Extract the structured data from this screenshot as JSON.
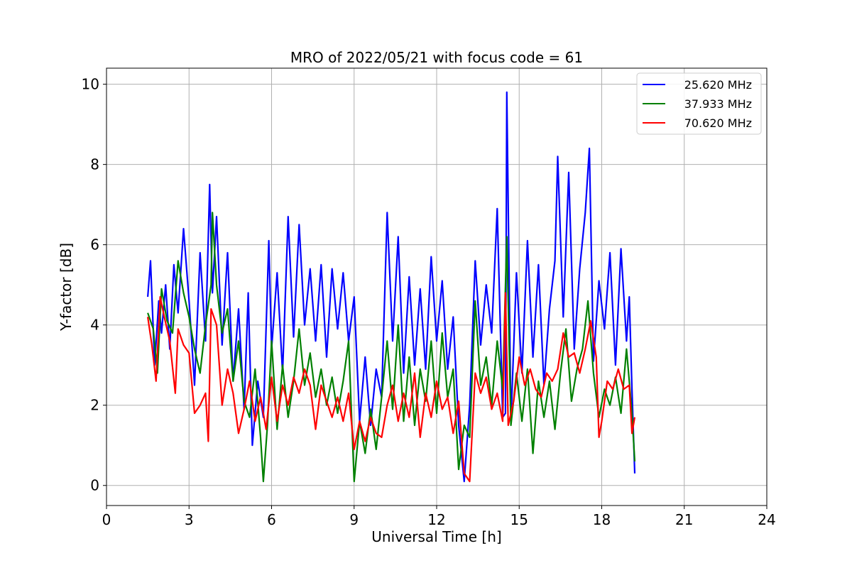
{
  "chart_data": {
    "type": "line",
    "title": "MRO of 2022/05/21 with focus code = 61",
    "xlabel": "Universal Time [h]",
    "ylabel": "Y-factor [dB]",
    "xlim": [
      0,
      24
    ],
    "ylim": [
      -0.5,
      10.4
    ],
    "xticks": [
      0,
      3,
      6,
      9,
      12,
      15,
      18,
      21,
      24
    ],
    "yticks": [
      0,
      2,
      4,
      6,
      8,
      10
    ],
    "grid": true,
    "legend_position": "top-right",
    "series": [
      {
        "name": "25.620 MHz",
        "color": "#0000ff",
        "x": [
          1.5,
          1.6,
          1.75,
          1.9,
          2.0,
          2.15,
          2.3,
          2.45,
          2.6,
          2.8,
          3.0,
          3.2,
          3.4,
          3.6,
          3.75,
          3.85,
          4.0,
          4.2,
          4.4,
          4.6,
          4.8,
          5.0,
          5.15,
          5.3,
          5.5,
          5.7,
          5.9,
          6.0,
          6.2,
          6.4,
          6.6,
          6.8,
          7.0,
          7.2,
          7.4,
          7.6,
          7.8,
          8.0,
          8.2,
          8.4,
          8.6,
          8.8,
          9.0,
          9.2,
          9.4,
          9.6,
          9.8,
          10.0,
          10.2,
          10.4,
          10.6,
          10.8,
          11.0,
          11.2,
          11.4,
          11.6,
          11.8,
          12.0,
          12.2,
          12.4,
          12.6,
          12.8,
          13.0,
          13.2,
          13.4,
          13.6,
          13.8,
          14.0,
          14.2,
          14.4,
          14.5,
          14.55,
          14.7,
          14.9,
          15.1,
          15.3,
          15.5,
          15.7,
          15.9,
          16.1,
          16.3,
          16.4,
          16.6,
          16.8,
          17.0,
          17.2,
          17.4,
          17.55,
          17.7,
          17.9,
          18.1,
          18.3,
          18.5,
          18.7,
          18.9,
          19.0,
          19.1,
          19.2
        ],
        "y": [
          4.7,
          5.6,
          3.0,
          4.6,
          3.8,
          5.0,
          3.4,
          5.5,
          4.3,
          6.4,
          4.6,
          2.5,
          5.8,
          3.6,
          7.5,
          4.8,
          6.7,
          3.5,
          5.8,
          2.6,
          4.4,
          1.9,
          4.8,
          1.0,
          2.6,
          1.7,
          6.1,
          3.4,
          5.3,
          2.8,
          6.7,
          3.7,
          6.5,
          4.0,
          5.4,
          3.6,
          5.5,
          3.2,
          5.4,
          3.9,
          5.3,
          3.6,
          4.7,
          1.6,
          3.2,
          1.5,
          2.9,
          2.2,
          6.8,
          3.6,
          6.2,
          2.8,
          5.2,
          3.0,
          4.9,
          2.9,
          5.7,
          3.6,
          5.1,
          2.9,
          4.2,
          1.5,
          0.1,
          2.0,
          5.6,
          3.5,
          5.0,
          3.8,
          6.9,
          1.7,
          1.8,
          9.8,
          1.6,
          5.3,
          2.8,
          6.1,
          3.2,
          5.5,
          2.5,
          4.4,
          5.6,
          8.2,
          4.2,
          7.8,
          3.4,
          5.4,
          6.8,
          8.4,
          3.1,
          5.1,
          3.9,
          5.8,
          3.0,
          5.9,
          3.6,
          4.7,
          2.4,
          0.3
        ]
      },
      {
        "name": "37.933 MHz",
        "color": "#008000",
        "x": [
          1.5,
          1.7,
          1.85,
          2.0,
          2.2,
          2.4,
          2.6,
          2.8,
          3.0,
          3.2,
          3.4,
          3.6,
          3.8,
          3.85,
          4.0,
          4.2,
          4.4,
          4.6,
          4.8,
          5.0,
          5.2,
          5.4,
          5.6,
          5.7,
          5.85,
          6.0,
          6.2,
          6.4,
          6.6,
          6.8,
          7.0,
          7.2,
          7.4,
          7.6,
          7.8,
          8.0,
          8.2,
          8.4,
          8.6,
          8.8,
          9.0,
          9.2,
          9.4,
          9.6,
          9.8,
          10.0,
          10.2,
          10.4,
          10.6,
          10.8,
          11.0,
          11.2,
          11.4,
          11.6,
          11.8,
          12.0,
          12.2,
          12.4,
          12.6,
          12.8,
          13.0,
          13.2,
          13.4,
          13.6,
          13.8,
          14.0,
          14.2,
          14.4,
          14.55,
          14.7,
          14.9,
          15.1,
          15.3,
          15.5,
          15.7,
          15.9,
          16.1,
          16.3,
          16.5,
          16.7,
          16.9,
          17.1,
          17.3,
          17.5,
          17.7,
          17.9,
          18.1,
          18.3,
          18.5,
          18.7,
          18.9,
          19.0,
          19.1,
          19.2
        ],
        "y": [
          4.3,
          3.9,
          2.8,
          4.9,
          4.1,
          3.8,
          5.6,
          4.8,
          4.2,
          3.4,
          2.8,
          4.0,
          5.0,
          6.8,
          5.0,
          3.8,
          4.4,
          2.6,
          3.6,
          2.1,
          1.7,
          2.9,
          1.2,
          0.1,
          1.5,
          3.6,
          1.4,
          3.0,
          1.7,
          2.6,
          3.9,
          2.5,
          3.3,
          2.2,
          2.9,
          2.0,
          2.7,
          1.8,
          2.6,
          3.6,
          0.1,
          1.6,
          0.8,
          1.9,
          0.9,
          2.2,
          3.6,
          1.9,
          4.0,
          1.6,
          3.2,
          1.5,
          2.9,
          2.1,
          3.6,
          1.8,
          3.8,
          2.2,
          2.9,
          0.4,
          1.5,
          1.2,
          4.6,
          2.5,
          3.2,
          2.0,
          3.6,
          2.4,
          6.2,
          1.5,
          2.8,
          1.6,
          2.9,
          0.8,
          2.6,
          1.7,
          2.6,
          1.4,
          2.8,
          3.9,
          2.1,
          2.9,
          3.4,
          4.6,
          2.8,
          1.7,
          2.4,
          2.0,
          2.7,
          1.8,
          3.4,
          2.6,
          1.8,
          0.6
        ]
      },
      {
        "name": "70.620 MHz",
        "color": "#ff0000",
        "x": [
          1.5,
          1.65,
          1.8,
          1.95,
          2.1,
          2.3,
          2.5,
          2.6,
          2.8,
          3.0,
          3.2,
          3.4,
          3.6,
          3.7,
          3.8,
          4.0,
          4.2,
          4.4,
          4.6,
          4.8,
          5.0,
          5.2,
          5.4,
          5.6,
          5.8,
          6.0,
          6.2,
          6.4,
          6.6,
          6.8,
          7.0,
          7.2,
          7.4,
          7.6,
          7.8,
          8.0,
          8.2,
          8.4,
          8.6,
          8.8,
          9.0,
          9.2,
          9.4,
          9.6,
          9.8,
          10.0,
          10.2,
          10.4,
          10.6,
          10.8,
          11.0,
          11.2,
          11.4,
          11.6,
          11.8,
          12.0,
          12.2,
          12.4,
          12.6,
          12.8,
          13.0,
          13.2,
          13.4,
          13.6,
          13.8,
          14.0,
          14.2,
          14.4,
          14.5,
          14.6,
          14.8,
          15.0,
          15.2,
          15.4,
          15.6,
          15.8,
          16.0,
          16.2,
          16.4,
          16.6,
          16.8,
          17.0,
          17.2,
          17.4,
          17.6,
          17.8,
          17.9,
          18.0,
          18.2,
          18.4,
          18.6,
          18.8,
          19.0,
          19.1,
          19.2
        ],
        "y": [
          4.2,
          3.5,
          2.6,
          4.7,
          4.2,
          3.6,
          2.3,
          3.9,
          3.5,
          3.3,
          1.8,
          2.0,
          2.3,
          1.1,
          4.4,
          4.0,
          2.0,
          2.9,
          2.3,
          1.3,
          1.9,
          2.6,
          1.6,
          2.2,
          1.4,
          2.7,
          1.6,
          2.5,
          2.0,
          2.7,
          2.3,
          2.9,
          2.5,
          1.4,
          2.5,
          2.1,
          1.7,
          2.2,
          1.6,
          2.3,
          0.9,
          1.6,
          1.1,
          1.7,
          1.3,
          1.2,
          2.0,
          2.5,
          1.6,
          2.3,
          1.7,
          2.8,
          1.2,
          2.3,
          1.7,
          2.6,
          1.9,
          2.2,
          1.3,
          2.1,
          0.3,
          0.1,
          2.8,
          2.3,
          2.7,
          1.9,
          2.3,
          1.6,
          4.8,
          1.5,
          2.1,
          3.2,
          2.5,
          2.9,
          2.4,
          2.2,
          2.8,
          2.6,
          2.9,
          3.8,
          3.2,
          3.3,
          2.8,
          3.4,
          4.1,
          3.2,
          1.2,
          1.6,
          2.6,
          2.4,
          2.9,
          2.4,
          2.5,
          1.3,
          1.7
        ]
      }
    ]
  }
}
